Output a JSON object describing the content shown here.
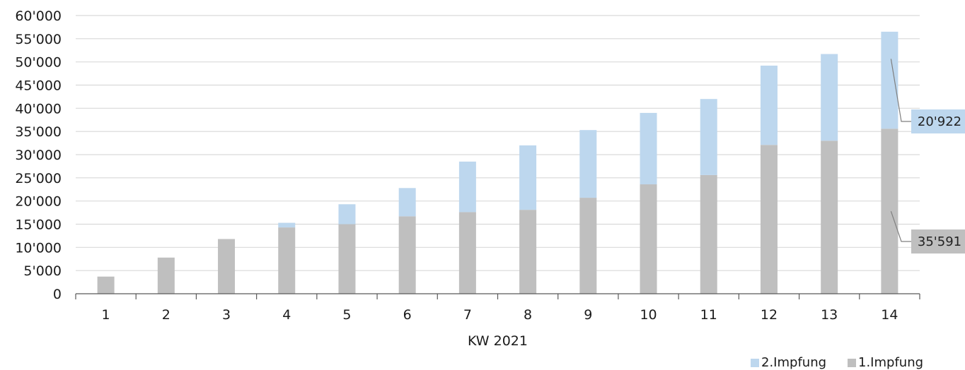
{
  "chart_data": {
    "type": "bar",
    "stacked": true,
    "xlabel": "KW 2021",
    "categories": [
      "1",
      "2",
      "3",
      "4",
      "5",
      "6",
      "7",
      "8",
      "9",
      "10",
      "11",
      "12",
      "13",
      "14"
    ],
    "ylim": [
      0,
      60000
    ],
    "yticks": [
      0,
      5000,
      10000,
      15000,
      20000,
      25000,
      30000,
      35000,
      40000,
      45000,
      50000,
      55000,
      60000
    ],
    "ytick_labels": [
      "0",
      "5'000",
      "10'000",
      "15'000",
      "20'000",
      "25'000",
      "30'000",
      "35'000",
      "40'000",
      "45'000",
      "50'000",
      "55'000",
      "60'000"
    ],
    "grid": true,
    "legend_position": "bottom-right",
    "series": [
      {
        "name": "1.Impfung",
        "color": "#bfbfbf",
        "values": [
          3700,
          7800,
          11800,
          14300,
          15000,
          16700,
          17600,
          18100,
          20700,
          23600,
          25600,
          32100,
          33000,
          35591
        ]
      },
      {
        "name": "2.Impfung",
        "color": "#bdd7ee",
        "values": [
          0,
          0,
          0,
          1000,
          4300,
          6100,
          10900,
          13900,
          14600,
          15400,
          16400,
          17100,
          18700,
          20922
        ]
      }
    ],
    "legend_order": [
      "2.Impfung",
      "1.Impfung"
    ],
    "annotations": [
      {
        "series": "2.Impfung",
        "category": "14",
        "text": "20'922"
      },
      {
        "series": "1.Impfung",
        "category": "14",
        "text": "35'591"
      }
    ]
  }
}
